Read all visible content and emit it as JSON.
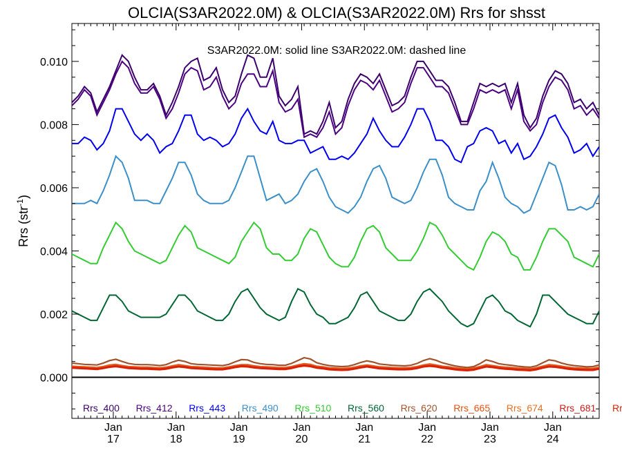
{
  "chart_data": {
    "type": "line",
    "title": "OLCIA(S3AR2022.0M) & OLCIA(S3AR2022.0M)  Rrs for shsst",
    "annotation": "S3AR2022.0M: solid line   S3AR2022.0M: dashed line",
    "ylabel": "Rrs (str",
    "ylabel_sup": "-1",
    "ylabel_close": ")",
    "ylim": [
      -0.0013,
      0.0112
    ],
    "yticks": [
      "0.000",
      "0.002",
      "0.004",
      "0.006",
      "0.008",
      "0.010"
    ],
    "ytick_values": [
      0.0,
      0.002,
      0.004,
      0.006,
      0.008,
      0.01
    ],
    "xlim": [
      0,
      84
    ],
    "xticks": [
      {
        "month": "Jan",
        "year": "17",
        "x": 6.6
      },
      {
        "month": "Jan",
        "year": "18",
        "x": 16.6
      },
      {
        "month": "Jan",
        "year": "19",
        "x": 26.6
      },
      {
        "month": "Jan",
        "year": "20",
        "x": 36.6
      },
      {
        "month": "Jan",
        "year": "21",
        "x": 46.6
      },
      {
        "month": "Jan",
        "year": "22",
        "x": 56.6
      },
      {
        "month": "Jan",
        "year": "23",
        "x": 66.6
      },
      {
        "month": "Jan",
        "year": "24",
        "x": 76.6
      }
    ],
    "legend": [
      "Rrs_400",
      "Rrs_412",
      "Rrs_443",
      "Rrs_490",
      "Rrs_510",
      "Rrs_560",
      "Rrs_620",
      "Rrs_665",
      "Rrs_674",
      "Rrs_681",
      "Rr"
    ],
    "legend_colors": [
      "#3a006b",
      "#4b0082",
      "#0000ee",
      "#3a8fc8",
      "#33cc33",
      "#006633",
      "#a0522d",
      "#e65010",
      "#e67020",
      "#cc1a1a",
      "#dd2200"
    ],
    "series": [
      {
        "name": "Rrs_400",
        "color": "#3a006b",
        "values": [
          0.0087,
          0.0089,
          0.0092,
          0.009,
          0.0084,
          0.0088,
          0.0092,
          0.0097,
          0.0102,
          0.01,
          0.0095,
          0.0091,
          0.0091,
          0.0093,
          0.0089,
          0.0083,
          0.0087,
          0.0092,
          0.0098,
          0.01,
          0.0101,
          0.0094,
          0.0095,
          0.0098,
          0.0091,
          0.0087,
          0.0089,
          0.0096,
          0.0102,
          0.0101,
          0.0095,
          0.0095,
          0.0101,
          0.0089,
          0.0086,
          0.0088,
          0.0092,
          0.0077,
          0.0078,
          0.0077,
          0.0081,
          0.0087,
          0.0079,
          0.0081,
          0.0088,
          0.0093,
          0.0096,
          0.0095,
          0.0093,
          0.0096,
          0.0091,
          0.0086,
          0.0087,
          0.0089,
          0.0095,
          0.01,
          0.01,
          0.0097,
          0.0094,
          0.0094,
          0.0092,
          0.0087,
          0.0081,
          0.0081,
          0.0087,
          0.0093,
          0.0092,
          0.0093,
          0.0092,
          0.0093,
          0.0087,
          0.0093,
          0.0083,
          0.0079,
          0.0082,
          0.0089,
          0.0094,
          0.0097,
          0.0096,
          0.0093,
          0.0087,
          0.0088,
          0.0085,
          0.0087,
          0.0083
        ]
      },
      {
        "name": "Rrs_412",
        "color": "#4b0082",
        "values": [
          0.0086,
          0.0088,
          0.0091,
          0.0089,
          0.0083,
          0.0087,
          0.0091,
          0.0096,
          0.01,
          0.0098,
          0.0093,
          0.009,
          0.009,
          0.0092,
          0.0088,
          0.0082,
          0.0085,
          0.009,
          0.0096,
          0.0098,
          0.0097,
          0.0091,
          0.0092,
          0.0095,
          0.0089,
          0.0085,
          0.0087,
          0.0093,
          0.0096,
          0.0096,
          0.0092,
          0.0092,
          0.0097,
          0.0087,
          0.0084,
          0.0085,
          0.0088,
          0.0076,
          0.0077,
          0.0076,
          0.0079,
          0.0084,
          0.0077,
          0.0079,
          0.0086,
          0.0091,
          0.0094,
          0.0093,
          0.0091,
          0.0094,
          0.0089,
          0.0084,
          0.0085,
          0.0087,
          0.0093,
          0.0098,
          0.0098,
          0.0095,
          0.0092,
          0.0092,
          0.009,
          0.0085,
          0.008,
          0.008,
          0.0085,
          0.0091,
          0.009,
          0.0091,
          0.009,
          0.0091,
          0.0085,
          0.0091,
          0.0081,
          0.0078,
          0.008,
          0.0087,
          0.0092,
          0.0095,
          0.0094,
          0.0091,
          0.0085,
          0.0086,
          0.0083,
          0.0085,
          0.0082
        ]
      },
      {
        "name": "Rrs_443",
        "color": "#0000ee",
        "values": [
          0.0074,
          0.0074,
          0.0076,
          0.0075,
          0.0072,
          0.0074,
          0.0078,
          0.0085,
          0.0085,
          0.0081,
          0.0077,
          0.0075,
          0.0077,
          0.0075,
          0.0071,
          0.0073,
          0.0074,
          0.0078,
          0.0083,
          0.0083,
          0.0077,
          0.0075,
          0.0076,
          0.0075,
          0.0073,
          0.0074,
          0.0077,
          0.0082,
          0.0085,
          0.0081,
          0.0078,
          0.0077,
          0.0081,
          0.0075,
          0.0074,
          0.0074,
          0.0075,
          0.0075,
          0.0071,
          0.0072,
          0.0073,
          0.0069,
          0.0069,
          0.007,
          0.0069,
          0.0071,
          0.0074,
          0.0077,
          0.0082,
          0.0078,
          0.0075,
          0.0073,
          0.0073,
          0.0076,
          0.008,
          0.0085,
          0.0085,
          0.0081,
          0.0075,
          0.0075,
          0.0073,
          0.0069,
          0.0068,
          0.0073,
          0.0074,
          0.0078,
          0.0079,
          0.0078,
          0.0074,
          0.0075,
          0.0071,
          0.0074,
          0.0069,
          0.007,
          0.0073,
          0.0077,
          0.0082,
          0.0083,
          0.0079,
          0.0076,
          0.0071,
          0.0072,
          0.0074,
          0.007,
          0.0073
        ]
      },
      {
        "name": "Rrs_490",
        "color": "#3a8fc8",
        "values": [
          0.0055,
          0.0055,
          0.0055,
          0.0056,
          0.0055,
          0.0059,
          0.0064,
          0.007,
          0.0068,
          0.0063,
          0.0056,
          0.0056,
          0.0056,
          0.0055,
          0.0055,
          0.0059,
          0.0063,
          0.0068,
          0.0068,
          0.0064,
          0.0058,
          0.0056,
          0.0055,
          0.0055,
          0.0055,
          0.0056,
          0.006,
          0.0065,
          0.007,
          0.007,
          0.0063,
          0.0056,
          0.0057,
          0.0058,
          0.0055,
          0.0056,
          0.0058,
          0.0062,
          0.0065,
          0.0066,
          0.0062,
          0.0057,
          0.0054,
          0.0053,
          0.0052,
          0.0054,
          0.0057,
          0.0062,
          0.0066,
          0.0067,
          0.0063,
          0.0057,
          0.0056,
          0.0055,
          0.0056,
          0.006,
          0.0065,
          0.0069,
          0.0069,
          0.0064,
          0.0057,
          0.0055,
          0.0054,
          0.0053,
          0.0053,
          0.0059,
          0.0062,
          0.0068,
          0.0063,
          0.0057,
          0.0055,
          0.0054,
          0.0052,
          0.0053,
          0.0058,
          0.0063,
          0.0068,
          0.0067,
          0.0061,
          0.0053,
          0.0053,
          0.0054,
          0.0053,
          0.0054,
          0.0058
        ]
      },
      {
        "name": "Rrs_510",
        "color": "#33cc33",
        "values": [
          0.0039,
          0.0038,
          0.0037,
          0.0036,
          0.0036,
          0.0041,
          0.0045,
          0.0049,
          0.0047,
          0.0043,
          0.004,
          0.0039,
          0.0038,
          0.0037,
          0.0036,
          0.0037,
          0.0041,
          0.0045,
          0.0048,
          0.0046,
          0.0041,
          0.004,
          0.0039,
          0.0038,
          0.0037,
          0.0036,
          0.0038,
          0.0043,
          0.0046,
          0.0049,
          0.0047,
          0.0041,
          0.0039,
          0.0039,
          0.0037,
          0.0037,
          0.0039,
          0.0044,
          0.0047,
          0.0046,
          0.0042,
          0.0038,
          0.0036,
          0.0035,
          0.0035,
          0.0038,
          0.0043,
          0.0047,
          0.0048,
          0.0046,
          0.0041,
          0.0039,
          0.0037,
          0.0037,
          0.0037,
          0.004,
          0.0044,
          0.0049,
          0.0048,
          0.0045,
          0.0041,
          0.0039,
          0.0037,
          0.0035,
          0.0034,
          0.0038,
          0.0043,
          0.0046,
          0.0045,
          0.0043,
          0.0039,
          0.0038,
          0.0034,
          0.0034,
          0.0038,
          0.0043,
          0.0047,
          0.0047,
          0.0045,
          0.0043,
          0.0038,
          0.0037,
          0.0036,
          0.0035,
          0.0039
        ]
      },
      {
        "name": "Rrs_560",
        "color": "#006633",
        "values": [
          0.0021,
          0.002,
          0.0019,
          0.0018,
          0.0018,
          0.0022,
          0.0026,
          0.0026,
          0.0024,
          0.0021,
          0.002,
          0.0019,
          0.0019,
          0.0019,
          0.0019,
          0.002,
          0.0023,
          0.0026,
          0.0026,
          0.0024,
          0.0021,
          0.002,
          0.0019,
          0.0018,
          0.0018,
          0.002,
          0.0024,
          0.0027,
          0.0028,
          0.0025,
          0.0022,
          0.002,
          0.0019,
          0.0018,
          0.0019,
          0.0024,
          0.0028,
          0.0027,
          0.0023,
          0.002,
          0.0019,
          0.0017,
          0.0017,
          0.0018,
          0.0019,
          0.0022,
          0.0026,
          0.0027,
          0.0024,
          0.0021,
          0.002,
          0.0019,
          0.0018,
          0.0018,
          0.002,
          0.0024,
          0.0027,
          0.0028,
          0.0026,
          0.0024,
          0.0021,
          0.0019,
          0.0017,
          0.0016,
          0.0017,
          0.0021,
          0.0025,
          0.0026,
          0.0024,
          0.0021,
          0.002,
          0.0018,
          0.0017,
          0.0016,
          0.002,
          0.0026,
          0.0026,
          0.0024,
          0.0022,
          0.002,
          0.0019,
          0.0018,
          0.0017,
          0.0017,
          0.0021
        ]
      },
      {
        "name": "Rrs_620",
        "color": "#a0522d",
        "values": [
          0.00045,
          0.00043,
          0.00041,
          0.0004,
          0.00039,
          0.00045,
          0.00053,
          0.00057,
          0.0005,
          0.00044,
          0.00041,
          0.0004,
          0.0004,
          0.00039,
          0.00037,
          0.0004,
          0.00048,
          0.00054,
          0.0005,
          0.00043,
          0.00041,
          0.0004,
          0.00039,
          0.00038,
          0.00037,
          0.00041,
          0.00049,
          0.00056,
          0.00055,
          0.00047,
          0.00043,
          0.00041,
          0.0004,
          0.00038,
          0.00038,
          0.00044,
          0.00053,
          0.00062,
          0.00058,
          0.00046,
          0.00041,
          0.00037,
          0.00035,
          0.00034,
          0.00035,
          0.0004,
          0.00047,
          0.00052,
          0.00048,
          0.00042,
          0.0004,
          0.00038,
          0.00037,
          0.00036,
          0.00038,
          0.00044,
          0.00053,
          0.00059,
          0.00054,
          0.00046,
          0.00041,
          0.00036,
          0.00033,
          0.00031,
          0.00034,
          0.00043,
          0.00055,
          0.0005,
          0.00043,
          0.0004,
          0.00038,
          0.00035,
          0.00033,
          0.00032,
          0.00036,
          0.00046,
          0.00055,
          0.00052,
          0.00045,
          0.0004,
          0.00037,
          0.00035,
          0.00033,
          0.00034,
          0.00039
        ]
      },
      {
        "name": "Rrs_665",
        "color": "#e65010",
        "values": [
          0.00035,
          0.00034,
          0.00033,
          0.00032,
          0.00031,
          0.00034,
          0.00039,
          0.00041,
          0.00037,
          0.00034,
          0.00033,
          0.00032,
          0.00032,
          0.00031,
          0.0003,
          0.00032,
          0.00036,
          0.0004,
          0.00037,
          0.00034,
          0.00033,
          0.00032,
          0.00031,
          0.0003,
          0.0003,
          0.00033,
          0.00037,
          0.0004,
          0.0004,
          0.00036,
          0.00034,
          0.00033,
          0.00032,
          0.00031,
          0.00031,
          0.00034,
          0.00039,
          0.00043,
          0.00041,
          0.00035,
          0.00033,
          0.0003,
          0.00029,
          0.00028,
          0.00029,
          0.00032,
          0.00036,
          0.00039,
          0.00036,
          0.00033,
          0.00032,
          0.00031,
          0.0003,
          0.0003,
          0.00031,
          0.00034,
          0.00039,
          0.00042,
          0.00039,
          0.00035,
          0.00033,
          0.0003,
          0.00028,
          0.00027,
          0.00029,
          0.00034,
          0.0004,
          0.00037,
          0.00034,
          0.00032,
          0.00031,
          0.00029,
          0.00028,
          0.00027,
          0.0003,
          0.00035,
          0.0004,
          0.00038,
          0.00035,
          0.00032,
          0.0003,
          0.00029,
          0.00028,
          0.00028,
          0.00032
        ]
      },
      {
        "name": "Rrs_674",
        "color": "#e67020",
        "values": [
          0.00032,
          0.00031,
          0.0003,
          0.00029,
          0.00028,
          0.00031,
          0.00036,
          0.00038,
          0.00034,
          0.00031,
          0.0003,
          0.00029,
          0.00029,
          0.00028,
          0.00027,
          0.00029,
          0.00033,
          0.00037,
          0.00034,
          0.00031,
          0.0003,
          0.00029,
          0.00028,
          0.00027,
          0.00027,
          0.0003,
          0.00034,
          0.00037,
          0.00037,
          0.00033,
          0.00031,
          0.0003,
          0.00029,
          0.00028,
          0.00028,
          0.00031,
          0.00036,
          0.0004,
          0.00038,
          0.00032,
          0.0003,
          0.00027,
          0.00026,
          0.00025,
          0.00026,
          0.00029,
          0.00033,
          0.00036,
          0.00033,
          0.0003,
          0.00029,
          0.00028,
          0.00027,
          0.00027,
          0.00028,
          0.00031,
          0.00036,
          0.00039,
          0.00036,
          0.00032,
          0.0003,
          0.00027,
          0.00025,
          0.00024,
          0.00026,
          0.00031,
          0.00037,
          0.00034,
          0.00031,
          0.00029,
          0.00028,
          0.00026,
          0.00025,
          0.00024,
          0.00027,
          0.00032,
          0.00037,
          0.00035,
          0.00032,
          0.00029,
          0.00027,
          0.00026,
          0.00025,
          0.00025,
          0.00029
        ]
      },
      {
        "name": "Rrs_681",
        "color": "#cc1a1a",
        "values": [
          0.00031,
          0.0003,
          0.00029,
          0.00028,
          0.00027,
          0.0003,
          0.00034,
          0.00036,
          0.00033,
          0.0003,
          0.00029,
          0.00028,
          0.00028,
          0.00027,
          0.00026,
          0.00028,
          0.00032,
          0.00035,
          0.00033,
          0.0003,
          0.00029,
          0.00028,
          0.00027,
          0.00026,
          0.00026,
          0.00029,
          0.00033,
          0.00036,
          0.00035,
          0.00032,
          0.0003,
          0.00029,
          0.00028,
          0.00027,
          0.00027,
          0.0003,
          0.00035,
          0.00038,
          0.00036,
          0.00031,
          0.00029,
          0.00026,
          0.00025,
          0.00024,
          0.00025,
          0.00028,
          0.00032,
          0.00035,
          0.00032,
          0.00029,
          0.00028,
          0.00027,
          0.00026,
          0.00026,
          0.00027,
          0.0003,
          0.00035,
          0.00037,
          0.00035,
          0.00031,
          0.00029,
          0.00026,
          0.00024,
          0.00023,
          0.00025,
          0.0003,
          0.00035,
          0.00033,
          0.0003,
          0.00028,
          0.00027,
          0.00025,
          0.00024,
          0.00023,
          0.00026,
          0.00031,
          0.00035,
          0.00034,
          0.00031,
          0.00028,
          0.00026,
          0.00025,
          0.00024,
          0.00024,
          0.00028
        ]
      },
      {
        "name": "Rr",
        "color": "#dd2200",
        "values": [
          0.00029,
          0.00028,
          0.00027,
          0.00026,
          0.00025,
          0.00028,
          0.00032,
          0.00034,
          0.00031,
          0.00028,
          0.00027,
          0.00026,
          0.00026,
          0.00025,
          0.00024,
          0.00026,
          0.0003,
          0.00033,
          0.00031,
          0.00028,
          0.00027,
          0.00026,
          0.00025,
          0.00024,
          0.00024,
          0.00027,
          0.00031,
          0.00034,
          0.00033,
          0.0003,
          0.00028,
          0.00027,
          0.00026,
          0.00025,
          0.00025,
          0.00028,
          0.00033,
          0.00036,
          0.00034,
          0.00029,
          0.00027,
          0.00024,
          0.00023,
          0.00022,
          0.00023,
          0.00026,
          0.0003,
          0.00033,
          0.0003,
          0.00027,
          0.00026,
          0.00025,
          0.00024,
          0.00024,
          0.00025,
          0.00028,
          0.00033,
          0.00035,
          0.00033,
          0.00029,
          0.00027,
          0.00024,
          0.00022,
          0.00021,
          0.00023,
          0.00028,
          0.00033,
          0.00031,
          0.00028,
          0.00026,
          0.00025,
          0.00023,
          0.00022,
          0.00021,
          0.00024,
          0.00029,
          0.00033,
          0.00032,
          0.00029,
          0.00026,
          0.00024,
          0.00023,
          0.00022,
          0.00022,
          0.00026
        ]
      }
    ]
  }
}
